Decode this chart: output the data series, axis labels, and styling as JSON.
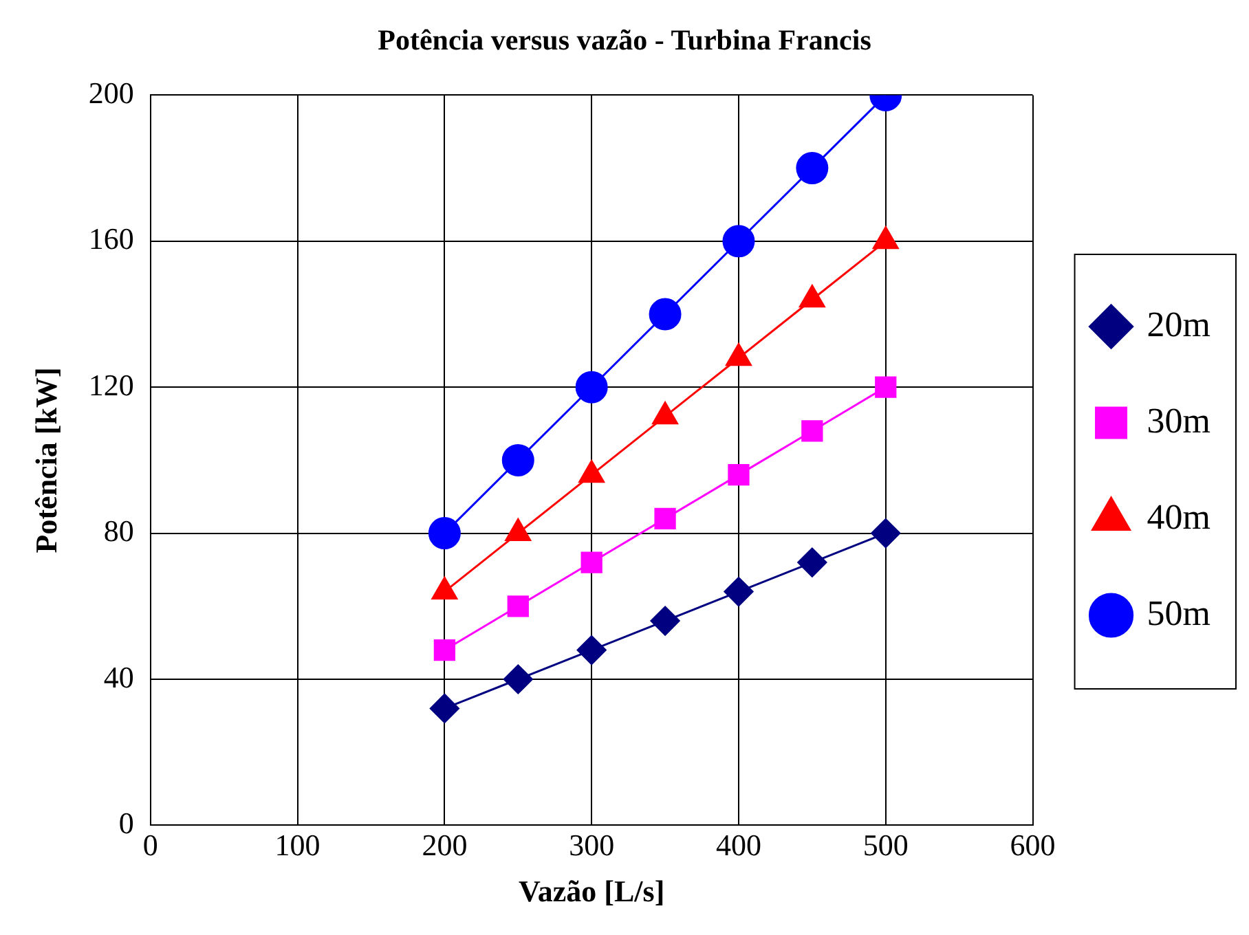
{
  "chart_data": {
    "type": "line",
    "title": "Potência versus vazão - Turbina Francis",
    "xlabel": "Vazão [L/s]",
    "ylabel": "Potência [kW]",
    "x": [
      200,
      250,
      300,
      350,
      400,
      450,
      500
    ],
    "series": [
      {
        "name": "20m",
        "color": "#000080",
        "marker": "diamond",
        "values": [
          32,
          40,
          48,
          56,
          64,
          72,
          80
        ]
      },
      {
        "name": "30m",
        "color": "#ff00ff",
        "marker": "square",
        "values": [
          48,
          60,
          72,
          84,
          96,
          108,
          120
        ]
      },
      {
        "name": "40m",
        "color": "#ff0000",
        "marker": "triangle",
        "values": [
          64,
          80,
          96,
          112,
          128,
          144,
          160
        ]
      },
      {
        "name": "50m",
        "color": "#0000ff",
        "marker": "circle",
        "values": [
          80,
          100,
          120,
          140,
          160,
          180,
          200
        ]
      }
    ],
    "xlim": [
      0,
      600
    ],
    "xticks": [
      0,
      100,
      200,
      300,
      400,
      500,
      600
    ],
    "ylim": [
      0,
      200
    ],
    "yticks": [
      0,
      40,
      80,
      120,
      160,
      200
    ],
    "grid": true,
    "legend": "right",
    "line_style": "solid"
  }
}
